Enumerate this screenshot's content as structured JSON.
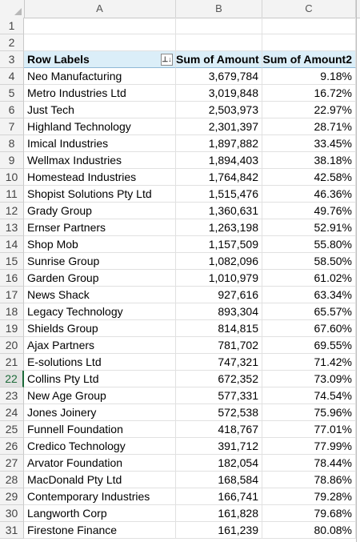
{
  "columns": [
    "A",
    "B",
    "C"
  ],
  "selected_row": "22",
  "pivot": {
    "headers": {
      "label": "Row Labels",
      "amount": "Sum of Amount",
      "amount2": "Sum of Amount2"
    },
    "filter_icon": "sort-filter-dropdown-icon",
    "filter_glyph": "⊥↓",
    "rows": [
      {
        "row": "4",
        "label": "Neo Manufacturing",
        "amount": "3,679,784",
        "pct": "9.18%"
      },
      {
        "row": "5",
        "label": "Metro Industries Ltd",
        "amount": "3,019,848",
        "pct": "16.72%"
      },
      {
        "row": "6",
        "label": "Just Tech",
        "amount": "2,503,973",
        "pct": "22.97%"
      },
      {
        "row": "7",
        "label": "Highland Technology",
        "amount": "2,301,397",
        "pct": "28.71%"
      },
      {
        "row": "8",
        "label": "Imical Industries",
        "amount": "1,897,882",
        "pct": "33.45%"
      },
      {
        "row": "9",
        "label": "Wellmax Industries",
        "amount": "1,894,403",
        "pct": "38.18%"
      },
      {
        "row": "10",
        "label": "Homestead Industries",
        "amount": "1,764,842",
        "pct": "42.58%"
      },
      {
        "row": "11",
        "label": "Shopist Solutions Pty Ltd",
        "amount": "1,515,476",
        "pct": "46.36%"
      },
      {
        "row": "12",
        "label": "Grady Group",
        "amount": "1,360,631",
        "pct": "49.76%"
      },
      {
        "row": "13",
        "label": "Ernser Partners",
        "amount": "1,263,198",
        "pct": "52.91%"
      },
      {
        "row": "14",
        "label": "Shop Mob",
        "amount": "1,157,509",
        "pct": "55.80%"
      },
      {
        "row": "15",
        "label": "Sunrise Group",
        "amount": "1,082,096",
        "pct": "58.50%"
      },
      {
        "row": "16",
        "label": "Garden Group",
        "amount": "1,010,979",
        "pct": "61.02%"
      },
      {
        "row": "17",
        "label": "News Shack",
        "amount": "927,616",
        "pct": "63.34%"
      },
      {
        "row": "18",
        "label": "Legacy Technology",
        "amount": "893,304",
        "pct": "65.57%"
      },
      {
        "row": "19",
        "label": "Shields Group",
        "amount": "814,815",
        "pct": "67.60%"
      },
      {
        "row": "20",
        "label": "Ajax Partners",
        "amount": "781,702",
        "pct": "69.55%"
      },
      {
        "row": "21",
        "label": "E-solutions Ltd",
        "amount": "747,321",
        "pct": "71.42%"
      },
      {
        "row": "22",
        "label": "Collins Pty Ltd",
        "amount": "672,352",
        "pct": "73.09%"
      },
      {
        "row": "23",
        "label": "New Age Group",
        "amount": "577,331",
        "pct": "74.54%"
      },
      {
        "row": "24",
        "label": "Jones Joinery",
        "amount": "572,538",
        "pct": "75.96%"
      },
      {
        "row": "25",
        "label": "Funnell Foundation",
        "amount": "418,767",
        "pct": "77.01%"
      },
      {
        "row": "26",
        "label": "Credico Technology",
        "amount": "391,712",
        "pct": "77.99%"
      },
      {
        "row": "27",
        "label": "Arvator Foundation",
        "amount": "182,054",
        "pct": "78.44%"
      },
      {
        "row": "28",
        "label": "MacDonald Pty Ltd",
        "amount": "168,584",
        "pct": "78.86%"
      },
      {
        "row": "29",
        "label": "Contemporary Industries",
        "amount": "166,741",
        "pct": "79.28%"
      },
      {
        "row": "30",
        "label": "Langworth Corp",
        "amount": "161,828",
        "pct": "79.68%"
      },
      {
        "row": "31",
        "label": "Firestone Finance",
        "amount": "161,239",
        "pct": "80.08%"
      }
    ]
  },
  "colors": {
    "header_fill": "#dbeef8",
    "selected_row_accent": "#1d6b3a"
  }
}
